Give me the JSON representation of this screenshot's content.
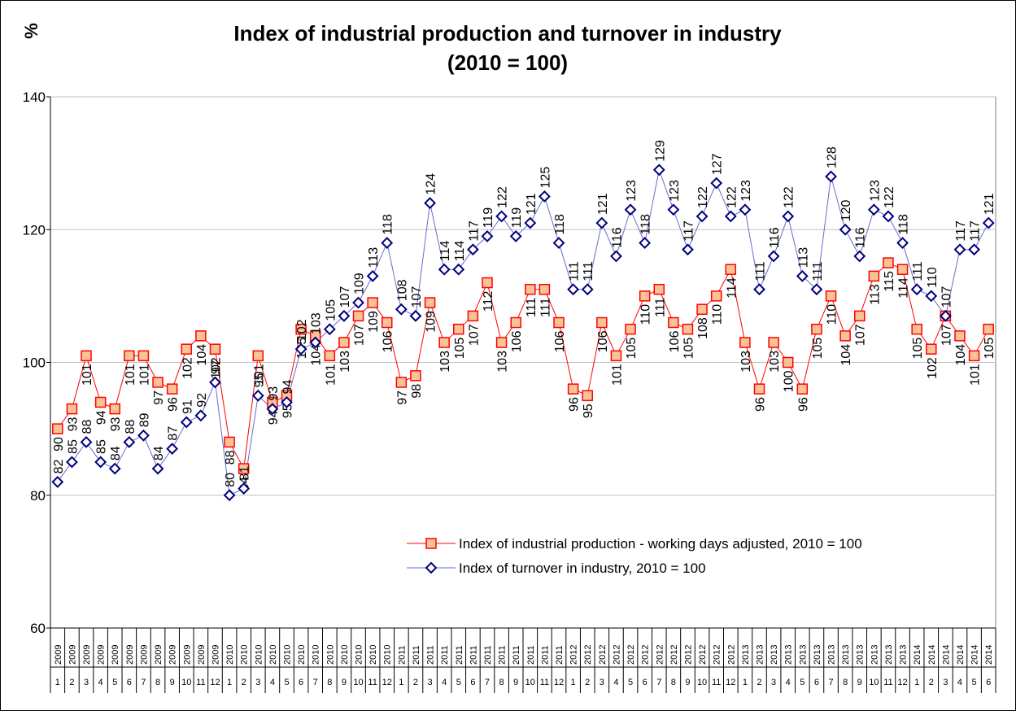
{
  "chart_data": {
    "type": "line",
    "title": "Index of industrial production and turnover in industry",
    "subtitle": "(2010 = 100)",
    "y_label": "%",
    "categories": [
      {
        "year": "2009",
        "month": "1"
      },
      {
        "year": "2009",
        "month": "2"
      },
      {
        "year": "2009",
        "month": "3"
      },
      {
        "year": "2009",
        "month": "4"
      },
      {
        "year": "2009",
        "month": "5"
      },
      {
        "year": "2009",
        "month": "6"
      },
      {
        "year": "2009",
        "month": "7"
      },
      {
        "year": "2009",
        "month": "8"
      },
      {
        "year": "2009",
        "month": "9"
      },
      {
        "year": "2009",
        "month": "10"
      },
      {
        "year": "2009",
        "month": "11"
      },
      {
        "year": "2009",
        "month": "12"
      },
      {
        "year": "2010",
        "month": "1"
      },
      {
        "year": "2010",
        "month": "2"
      },
      {
        "year": "2010",
        "month": "3"
      },
      {
        "year": "2010",
        "month": "4"
      },
      {
        "year": "2010",
        "month": "5"
      },
      {
        "year": "2010",
        "month": "6"
      },
      {
        "year": "2010",
        "month": "7"
      },
      {
        "year": "2010",
        "month": "8"
      },
      {
        "year": "2010",
        "month": "9"
      },
      {
        "year": "2010",
        "month": "10"
      },
      {
        "year": "2010",
        "month": "11"
      },
      {
        "year": "2010",
        "month": "12"
      },
      {
        "year": "2011",
        "month": "1"
      },
      {
        "year": "2011",
        "month": "2"
      },
      {
        "year": "2011",
        "month": "3"
      },
      {
        "year": "2011",
        "month": "4"
      },
      {
        "year": "2011",
        "month": "5"
      },
      {
        "year": "2011",
        "month": "6"
      },
      {
        "year": "2011",
        "month": "7"
      },
      {
        "year": "2011",
        "month": "8"
      },
      {
        "year": "2011",
        "month": "9"
      },
      {
        "year": "2011",
        "month": "10"
      },
      {
        "year": "2011",
        "month": "11"
      },
      {
        "year": "2011",
        "month": "12"
      },
      {
        "year": "2012",
        "month": "1"
      },
      {
        "year": "2012",
        "month": "2"
      },
      {
        "year": "2012",
        "month": "3"
      },
      {
        "year": "2012",
        "month": "4"
      },
      {
        "year": "2012",
        "month": "5"
      },
      {
        "year": "2012",
        "month": "6"
      },
      {
        "year": "2012",
        "month": "7"
      },
      {
        "year": "2012",
        "month": "8"
      },
      {
        "year": "2012",
        "month": "9"
      },
      {
        "year": "2012",
        "month": "10"
      },
      {
        "year": "2012",
        "month": "11"
      },
      {
        "year": "2012",
        "month": "12"
      },
      {
        "year": "2013",
        "month": "1"
      },
      {
        "year": "2013",
        "month": "2"
      },
      {
        "year": "2013",
        "month": "3"
      },
      {
        "year": "2013",
        "month": "4"
      },
      {
        "year": "2013",
        "month": "5"
      },
      {
        "year": "2013",
        "month": "6"
      },
      {
        "year": "2013",
        "month": "7"
      },
      {
        "year": "2013",
        "month": "8"
      },
      {
        "year": "2013",
        "month": "9"
      },
      {
        "year": "2013",
        "month": "10"
      },
      {
        "year": "2013",
        "month": "11"
      },
      {
        "year": "2013",
        "month": "12"
      },
      {
        "year": "2014",
        "month": "1"
      },
      {
        "year": "2014",
        "month": "2"
      },
      {
        "year": "2014",
        "month": "3"
      },
      {
        "year": "2014",
        "month": "4"
      },
      {
        "year": "2014",
        "month": "5"
      },
      {
        "year": "2014",
        "month": "6"
      }
    ],
    "series": [
      {
        "name": "Index of industrial production - working days adjusted, 2010 = 100",
        "color": "#ff0000",
        "marker_fill": "#f8c497",
        "marker": "square",
        "values": [
          90,
          93,
          101,
          94,
          93,
          101,
          101,
          97,
          96,
          102,
          104,
          102,
          88,
          84,
          101,
          94,
          95,
          105,
          104,
          101,
          103,
          107,
          109,
          106,
          97,
          98,
          109,
          103,
          105,
          107,
          112,
          103,
          106,
          111,
          111,
          106,
          96,
          95,
          106,
          101,
          105,
          110,
          111,
          106,
          105,
          108,
          110,
          114,
          103,
          96,
          103,
          100,
          96,
          105,
          110,
          104,
          107,
          113,
          115,
          114,
          105,
          102,
          107,
          104,
          101,
          105
        ]
      },
      {
        "name": "Index of turnover in industry, 2010 = 100",
        "color": "#6a6ad0",
        "marker_fill": "#ffffff",
        "marker_stroke": "#000080",
        "marker": "diamond",
        "values": [
          82,
          85,
          88,
          85,
          84,
          88,
          89,
          84,
          87,
          91,
          92,
          97,
          80,
          81,
          95,
          93,
          94,
          102,
          103,
          105,
          107,
          109,
          113,
          118,
          108,
          107,
          124,
          114,
          114,
          117,
          119,
          122,
          119,
          121,
          125,
          118,
          111,
          111,
          121,
          116,
          123,
          118,
          129,
          123,
          117,
          122,
          127,
          122,
          123,
          111,
          116,
          122,
          113,
          111,
          128,
          120,
          116,
          123,
          122,
          118,
          111,
          110,
          107,
          117,
          117,
          121
        ]
      }
    ],
    "ylim": [
      60,
      140
    ],
    "yticks": [
      60,
      80,
      100,
      120,
      140
    ],
    "grid": true
  }
}
